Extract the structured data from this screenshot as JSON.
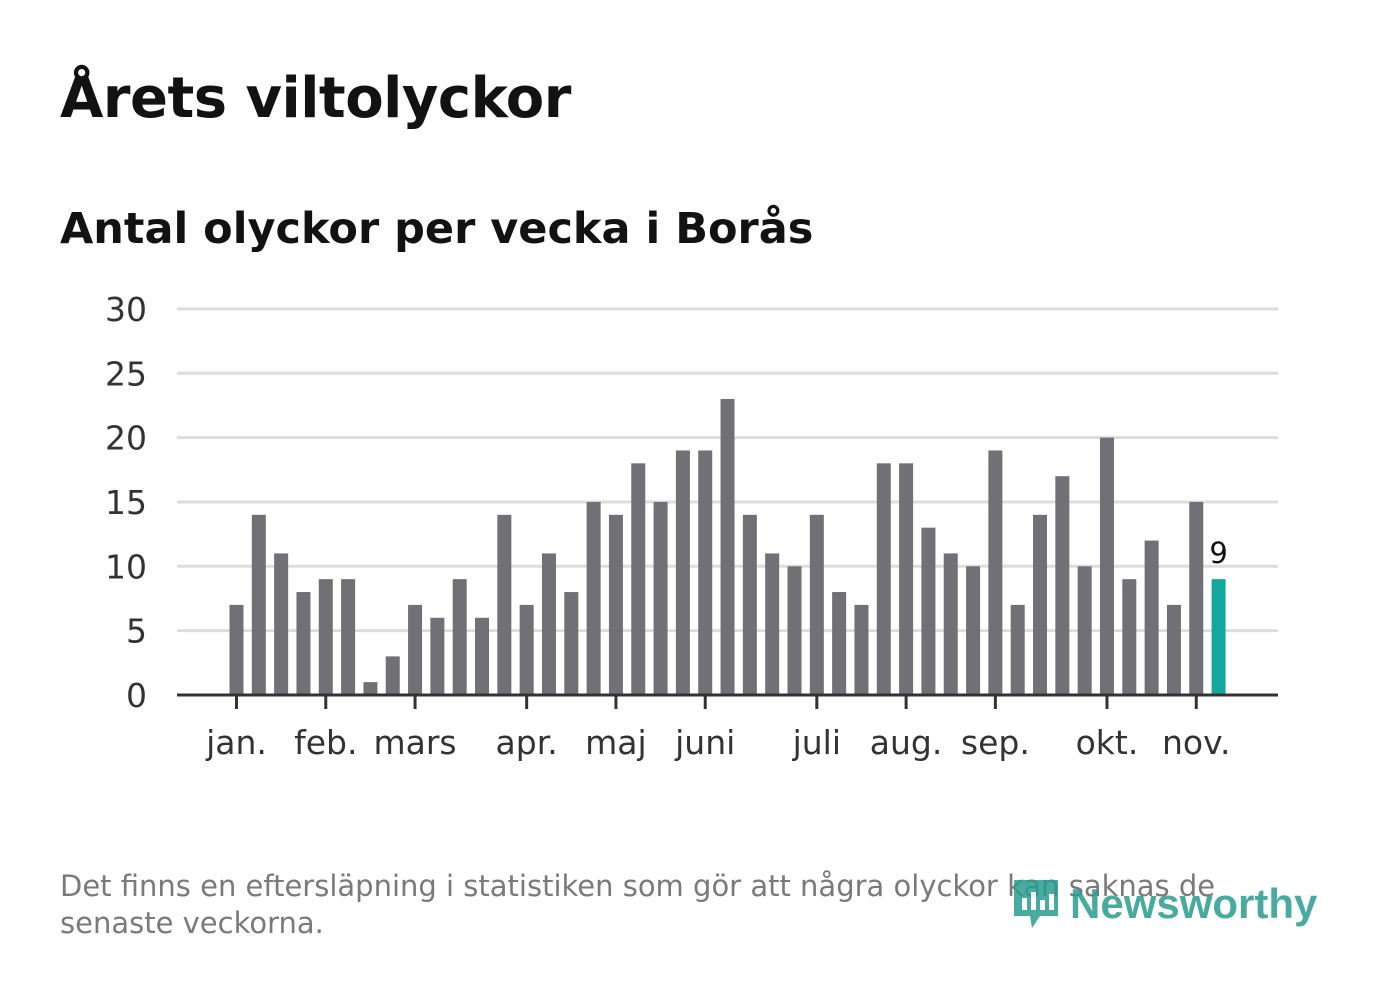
{
  "header": {
    "title": "Årets viltolyckor",
    "subtitle": "Antal olyckor per vecka i Borås"
  },
  "footnote": "Det finns en eftersläpning i statistiken som gör att några olyckor kan saknas de senaste veckorna.",
  "logo": {
    "text": "Newsworthy",
    "icon": "newsworthy-logo-icon"
  },
  "colors": {
    "bar": "#707075",
    "highlight": "#13a89e",
    "grid": "#dddddd",
    "axis": "#333333"
  },
  "chart_data": {
    "type": "bar",
    "title": "Antal olyckor per vecka i Borås",
    "xlabel": "",
    "ylabel": "",
    "ylim": [
      0,
      30
    ],
    "yticks": [
      "0",
      "5",
      "10",
      "15",
      "20",
      "25",
      "30"
    ],
    "grid": true,
    "week_range": [
      1,
      45
    ],
    "weeks": [
      2,
      3,
      4,
      5,
      6,
      7,
      8,
      9,
      10,
      11,
      12,
      13,
      14,
      15,
      16,
      17,
      18,
      19,
      20,
      21,
      22,
      23,
      24,
      25,
      26,
      27,
      28,
      29,
      30,
      31,
      32,
      33,
      34,
      35,
      36,
      37,
      38,
      39,
      40,
      41,
      42,
      43,
      44,
      45
    ],
    "values": [
      7,
      14,
      11,
      8,
      9,
      9,
      1,
      3,
      7,
      6,
      9,
      6,
      14,
      7,
      11,
      8,
      15,
      14,
      18,
      15,
      19,
      19,
      23,
      14,
      11,
      10,
      14,
      8,
      7,
      18,
      18,
      13,
      11,
      10,
      19,
      7,
      14,
      17,
      10,
      20,
      9,
      12,
      7,
      15
    ],
    "highlight": {
      "week": 46,
      "value": 9,
      "label": "9"
    },
    "month_ticks": [
      {
        "label": "jan.",
        "week": 2
      },
      {
        "label": "feb.",
        "week": 6
      },
      {
        "label": "mars",
        "week": 10
      },
      {
        "label": "apr.",
        "week": 15
      },
      {
        "label": "maj",
        "week": 19
      },
      {
        "label": "juni",
        "week": 23
      },
      {
        "label": "juli",
        "week": 28
      },
      {
        "label": "aug.",
        "week": 32
      },
      {
        "label": "sep.",
        "week": 36
      },
      {
        "label": "okt.",
        "week": 41
      },
      {
        "label": "nov.",
        "week": 45
      }
    ]
  }
}
